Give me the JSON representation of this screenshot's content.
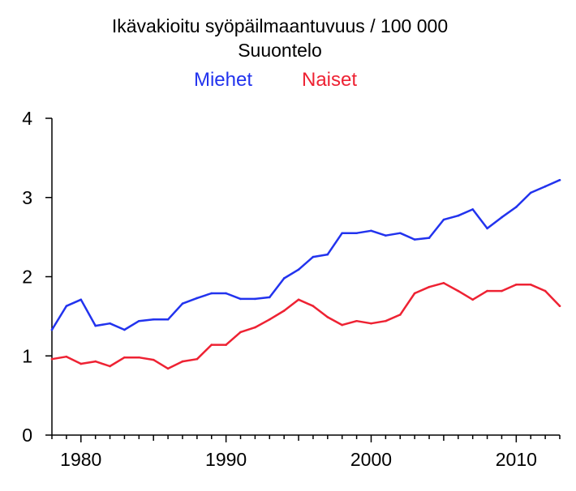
{
  "chart_data": {
    "type": "line",
    "title": "Ikävakioitu syöpäilmaantuvuus / 100 000",
    "subtitle": "Suuontelo",
    "xlabel": "",
    "ylabel": "",
    "xlim": [
      1978,
      2013
    ],
    "ylim": [
      0,
      4
    ],
    "x_ticks": [
      1980,
      1990,
      2000,
      2010
    ],
    "y_ticks": [
      0,
      1,
      2,
      3,
      4
    ],
    "grid": false,
    "legend_position": "top-center",
    "x": [
      1978,
      1979,
      1980,
      1981,
      1982,
      1983,
      1984,
      1985,
      1986,
      1987,
      1988,
      1989,
      1990,
      1991,
      1992,
      1993,
      1994,
      1995,
      1996,
      1997,
      1998,
      1999,
      2000,
      2001,
      2002,
      2003,
      2004,
      2005,
      2006,
      2007,
      2008,
      2009,
      2010,
      2011,
      2012,
      2013
    ],
    "series": [
      {
        "name": "Miehet",
        "color": "#2233ee",
        "values": [
          1.33,
          1.63,
          1.71,
          1.38,
          1.41,
          1.33,
          1.44,
          1.46,
          1.46,
          1.66,
          1.73,
          1.79,
          1.79,
          1.72,
          1.72,
          1.74,
          1.98,
          2.09,
          2.25,
          2.28,
          2.55,
          2.55,
          2.58,
          2.52,
          2.55,
          2.47,
          2.49,
          2.72,
          2.77,
          2.85,
          2.61,
          2.75,
          2.88,
          3.06,
          3.14,
          3.22
        ]
      },
      {
        "name": "Naiset",
        "color": "#ee2233",
        "values": [
          0.96,
          0.99,
          0.9,
          0.93,
          0.87,
          0.98,
          0.98,
          0.95,
          0.84,
          0.93,
          0.96,
          1.14,
          1.14,
          1.3,
          1.36,
          1.46,
          1.57,
          1.71,
          1.63,
          1.49,
          1.39,
          1.44,
          1.41,
          1.44,
          1.52,
          1.79,
          1.87,
          1.92,
          1.82,
          1.71,
          1.82,
          1.82,
          1.9,
          1.9,
          1.82,
          1.63
        ]
      }
    ]
  }
}
